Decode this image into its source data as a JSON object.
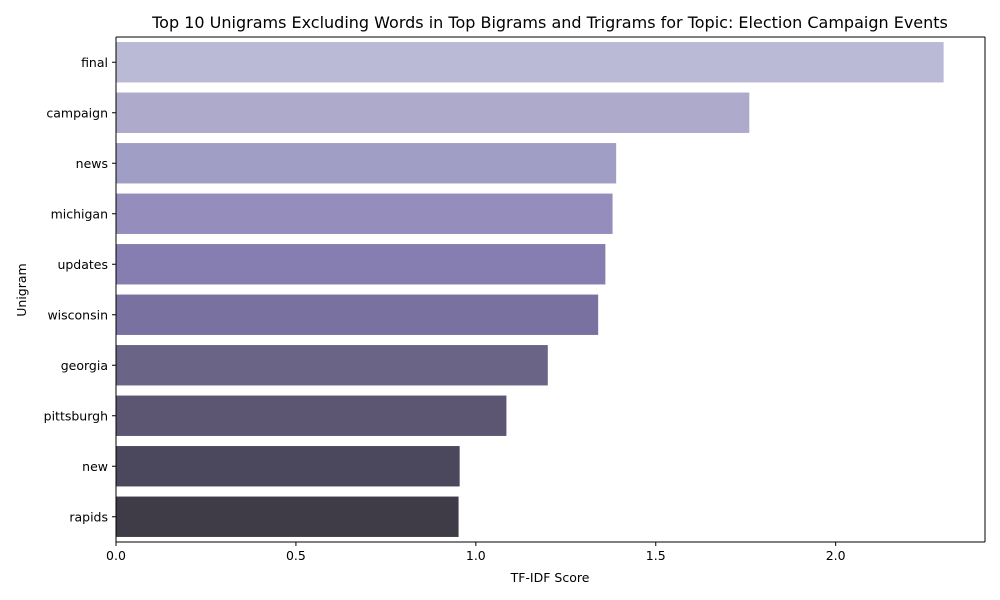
{
  "chart_data": {
    "type": "bar",
    "orientation": "horizontal",
    "title": "Top 10 Unigrams Excluding Words in Top Bigrams and Trigrams for Topic: Election Campaign Events",
    "xlabel": "TF-IDF Score",
    "ylabel": "Unigram",
    "categories": [
      "final",
      "campaign",
      "news",
      "michigan",
      "updates",
      "wisconsin",
      "georgia",
      "pittsburgh",
      "new",
      "rapids"
    ],
    "values": [
      2.3,
      1.76,
      1.39,
      1.38,
      1.36,
      1.34,
      1.2,
      1.085,
      0.955,
      0.952
    ],
    "colors": [
      "#bab9d6",
      "#adaacc",
      "#a19ec5",
      "#958dbb",
      "#867db0",
      "#7972a0",
      "#6a6486",
      "#5c5673",
      "#4b475d",
      "#3f3c47"
    ],
    "xlim": [
      0,
      2.415
    ],
    "xticks": [
      0.0,
      0.5,
      1.0,
      1.5,
      2.0
    ],
    "xtick_labels": [
      "0.0",
      "0.5",
      "1.0",
      "1.5",
      "2.0"
    ],
    "grid": false,
    "legend": "none"
  }
}
